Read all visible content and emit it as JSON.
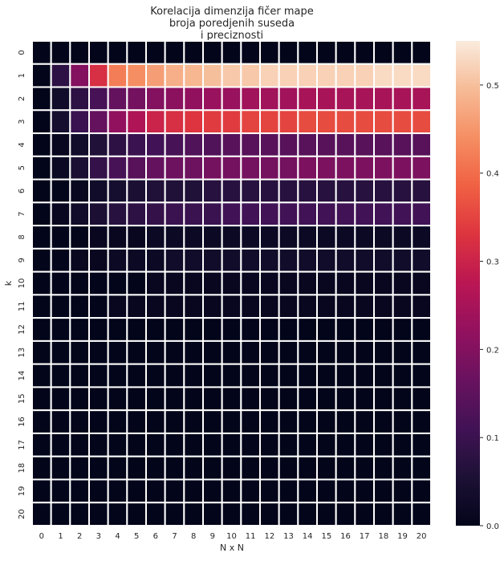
{
  "chart_data": {
    "type": "heatmap",
    "title_lines": [
      "Korelacija dimenzija fičer mape",
      "broja poredjenih suseda",
      "i preciznosti"
    ],
    "xlabel": "N x N",
    "ylabel": "k",
    "x_categories": [
      "0",
      "1",
      "2",
      "3",
      "4",
      "5",
      "6",
      "7",
      "8",
      "9",
      "10",
      "11",
      "12",
      "13",
      "14",
      "15",
      "16",
      "17",
      "18",
      "19",
      "20"
    ],
    "y_categories": [
      "0",
      "1",
      "2",
      "3",
      "4",
      "5",
      "6",
      "7",
      "8",
      "9",
      "10",
      "11",
      "12",
      "13",
      "14",
      "15",
      "16",
      "17",
      "18",
      "19",
      "20"
    ],
    "colorbar": {
      "vmin": 0.0,
      "vmax": 0.55,
      "ticks": [
        "0.0",
        "0.1",
        "0.2",
        "0.3",
        "0.4",
        "0.5"
      ],
      "tick_values": [
        0.0,
        0.1,
        0.2,
        0.3,
        0.4,
        0.5
      ]
    },
    "colormap": "rocket",
    "values": [
      [
        0.0,
        0.0,
        0.0,
        0.0,
        0.0,
        0.0,
        0.0,
        0.0,
        0.0,
        0.0,
        0.0,
        0.0,
        0.0,
        0.0,
        0.0,
        0.0,
        0.0,
        0.0,
        0.0,
        0.0,
        0.0
      ],
      [
        0.0,
        0.08,
        0.2,
        0.32,
        0.42,
        0.44,
        0.46,
        0.48,
        0.49,
        0.5,
        0.51,
        0.51,
        0.52,
        0.52,
        0.52,
        0.52,
        0.52,
        0.52,
        0.53,
        0.53,
        0.53
      ],
      [
        0.0,
        0.03,
        0.08,
        0.12,
        0.16,
        0.18,
        0.2,
        0.21,
        0.22,
        0.23,
        0.23,
        0.24,
        0.24,
        0.24,
        0.25,
        0.25,
        0.25,
        0.25,
        0.25,
        0.25,
        0.25
      ],
      [
        0.0,
        0.04,
        0.1,
        0.16,
        0.22,
        0.26,
        0.3,
        0.32,
        0.33,
        0.34,
        0.34,
        0.35,
        0.35,
        0.35,
        0.36,
        0.36,
        0.36,
        0.36,
        0.36,
        0.36,
        0.36
      ],
      [
        0.0,
        0.01,
        0.03,
        0.06,
        0.08,
        0.1,
        0.11,
        0.12,
        0.13,
        0.13,
        0.14,
        0.14,
        0.14,
        0.14,
        0.14,
        0.14,
        0.14,
        0.14,
        0.14,
        0.14,
        0.14
      ],
      [
        0.0,
        0.02,
        0.05,
        0.09,
        0.12,
        0.14,
        0.16,
        0.17,
        0.17,
        0.18,
        0.18,
        0.18,
        0.18,
        0.18,
        0.19,
        0.19,
        0.19,
        0.19,
        0.19,
        0.19,
        0.19
      ],
      [
        0.0,
        0.0,
        0.01,
        0.03,
        0.04,
        0.05,
        0.06,
        0.06,
        0.06,
        0.07,
        0.07,
        0.07,
        0.07,
        0.07,
        0.07,
        0.07,
        0.07,
        0.07,
        0.07,
        0.07,
        0.07
      ],
      [
        0.0,
        0.01,
        0.03,
        0.05,
        0.07,
        0.08,
        0.09,
        0.1,
        0.1,
        0.1,
        0.11,
        0.11,
        0.11,
        0.11,
        0.11,
        0.11,
        0.11,
        0.11,
        0.11,
        0.11,
        0.11
      ],
      [
        0.0,
        0.0,
        0.0,
        0.01,
        0.01,
        0.01,
        0.02,
        0.02,
        0.02,
        0.02,
        0.02,
        0.02,
        0.02,
        0.02,
        0.02,
        0.02,
        0.02,
        0.02,
        0.02,
        0.02,
        0.02
      ],
      [
        0.0,
        0.0,
        0.01,
        0.01,
        0.02,
        0.02,
        0.02,
        0.03,
        0.03,
        0.03,
        0.03,
        0.03,
        0.03,
        0.03,
        0.03,
        0.03,
        0.03,
        0.03,
        0.03,
        0.03,
        0.03
      ],
      [
        0.0,
        0.0,
        0.0,
        0.0,
        0.0,
        0.0,
        0.01,
        0.01,
        0.01,
        0.01,
        0.01,
        0.01,
        0.01,
        0.01,
        0.01,
        0.01,
        0.01,
        0.01,
        0.01,
        0.01,
        0.01
      ],
      [
        0.0,
        0.0,
        0.0,
        0.0,
        0.01,
        0.01,
        0.01,
        0.01,
        0.01,
        0.01,
        0.01,
        0.01,
        0.01,
        0.01,
        0.01,
        0.01,
        0.01,
        0.01,
        0.01,
        0.01,
        0.01
      ],
      [
        0.0,
        0.0,
        0.0,
        0.0,
        0.0,
        0.0,
        0.0,
        0.0,
        0.0,
        0.0,
        0.0,
        0.0,
        0.0,
        0.0,
        0.0,
        0.0,
        0.0,
        0.0,
        0.0,
        0.0,
        0.0
      ],
      [
        0.0,
        0.0,
        0.0,
        0.0,
        0.0,
        0.0,
        0.0,
        0.0,
        0.0,
        0.0,
        0.0,
        0.0,
        0.0,
        0.0,
        0.0,
        0.0,
        0.0,
        0.0,
        0.0,
        0.0,
        0.0
      ],
      [
        0.0,
        0.0,
        0.0,
        0.0,
        0.0,
        0.0,
        0.0,
        0.0,
        0.0,
        0.0,
        0.0,
        0.0,
        0.0,
        0.0,
        0.0,
        0.0,
        0.0,
        0.0,
        0.0,
        0.0,
        0.0
      ],
      [
        0.0,
        0.0,
        0.0,
        0.0,
        0.0,
        0.0,
        0.0,
        0.0,
        0.0,
        0.0,
        0.0,
        0.0,
        0.0,
        0.0,
        0.0,
        0.0,
        0.0,
        0.0,
        0.0,
        0.0,
        0.0
      ],
      [
        0.0,
        0.0,
        0.0,
        0.0,
        0.0,
        0.0,
        0.0,
        0.0,
        0.0,
        0.0,
        0.0,
        0.0,
        0.0,
        0.0,
        0.0,
        0.0,
        0.0,
        0.0,
        0.0,
        0.0,
        0.0
      ],
      [
        0.0,
        0.0,
        0.0,
        0.0,
        0.0,
        0.0,
        0.0,
        0.0,
        0.0,
        0.0,
        0.0,
        0.0,
        0.0,
        0.0,
        0.0,
        0.0,
        0.0,
        0.0,
        0.0,
        0.0,
        0.0
      ],
      [
        0.0,
        0.0,
        0.0,
        0.0,
        0.0,
        0.0,
        0.0,
        0.0,
        0.0,
        0.0,
        0.0,
        0.0,
        0.0,
        0.0,
        0.0,
        0.0,
        0.0,
        0.0,
        0.0,
        0.0,
        0.0
      ],
      [
        0.0,
        0.0,
        0.0,
        0.0,
        0.0,
        0.0,
        0.0,
        0.0,
        0.0,
        0.0,
        0.0,
        0.0,
        0.0,
        0.0,
        0.0,
        0.0,
        0.0,
        0.0,
        0.0,
        0.0,
        0.0
      ],
      [
        0.0,
        0.0,
        0.0,
        0.0,
        0.0,
        0.0,
        0.0,
        0.0,
        0.0,
        0.0,
        0.0,
        0.0,
        0.0,
        0.0,
        0.0,
        0.0,
        0.0,
        0.0,
        0.0,
        0.0,
        0.0
      ]
    ],
    "grid_line_color": "#ffffff"
  }
}
